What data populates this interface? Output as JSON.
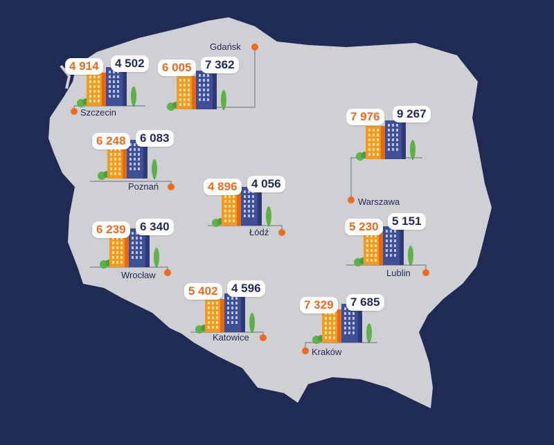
{
  "colors": {
    "background": "#1f2a55",
    "land": "#cfd0d3",
    "orange": "#ee6a1c",
    "navy": "#1f2a55",
    "building_orange": "#f59a1f",
    "building_blue": "#3e4f94",
    "tree_green": "#5fb24a"
  },
  "cities": [
    {
      "name": "Gdańsk",
      "value_orange": "6 005",
      "value_navy": "7 362"
    },
    {
      "name": "Szczecin",
      "value_orange": "4 914",
      "value_navy": "4 502"
    },
    {
      "name": "Poznań",
      "value_orange": "6 248",
      "value_navy": "6 083"
    },
    {
      "name": "Warszawa",
      "value_orange": "7 976",
      "value_navy": "9 267"
    },
    {
      "name": "Łódź",
      "value_orange": "4 896",
      "value_navy": "4 056"
    },
    {
      "name": "Wrocław",
      "value_orange": "6 239",
      "value_navy": "6 340"
    },
    {
      "name": "Lublin",
      "value_orange": "5 230",
      "value_navy": "5 151"
    },
    {
      "name": "Katowice",
      "value_orange": "5 402",
      "value_navy": "4 596"
    },
    {
      "name": "Kraków",
      "value_orange": "7 329",
      "value_navy": "7 685"
    }
  ]
}
